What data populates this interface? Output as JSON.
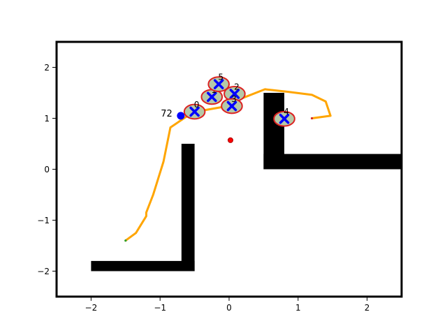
{
  "chart_data": {
    "type": "scatter",
    "title": "",
    "xlabel": "",
    "ylabel": "",
    "xlim": [
      -2.5,
      2.5
    ],
    "ylim": [
      -2.5,
      2.5
    ],
    "grid": false,
    "legend": "none",
    "x_ticks": [
      -2,
      -1,
      0,
      1,
      2
    ],
    "y_ticks": [
      -2,
      -1,
      0,
      1,
      2
    ],
    "x_tick_labels": [
      "−2",
      "−1",
      "0",
      "1",
      "2"
    ],
    "y_tick_labels": [
      "−2",
      "−1",
      "0",
      "1",
      "2"
    ],
    "obstacles": [
      {
        "x": [
          -2.0,
          -0.5
        ],
        "y": [
          -2.0,
          -1.8
        ]
      },
      {
        "x": [
          -0.69,
          -0.5
        ],
        "y": [
          -2.0,
          0.5
        ]
      },
      {
        "x": [
          0.5,
          0.8
        ],
        "y": [
          0.0,
          1.5
        ]
      },
      {
        "x": [
          0.5,
          2.5
        ],
        "y": [
          0.0,
          0.3
        ]
      }
    ],
    "path": {
      "color": "#ffa500",
      "points": [
        [
          -1.5,
          -1.4
        ],
        [
          -1.35,
          -1.25
        ],
        [
          -1.2,
          -0.92
        ],
        [
          -1.2,
          -0.85
        ],
        [
          -1.1,
          -0.5
        ],
        [
          -0.95,
          0.15
        ],
        [
          -0.85,
          0.82
        ],
        [
          -0.6,
          1.05
        ],
        [
          -0.4,
          1.15
        ],
        [
          -0.1,
          1.22
        ],
        [
          0.2,
          1.4
        ],
        [
          0.52,
          1.57
        ],
        [
          0.85,
          1.52
        ],
        [
          1.2,
          1.46
        ],
        [
          1.4,
          1.33
        ],
        [
          1.47,
          1.05
        ],
        [
          1.2,
          1.0
        ]
      ]
    },
    "start": {
      "x": -1.5,
      "y": -1.4,
      "color": "#2ca02c"
    },
    "goal": {
      "x": 1.2,
      "y": 1.0,
      "color": "#d62728"
    },
    "current_agent": {
      "x": -0.7,
      "y": 1.05,
      "label": "72",
      "color": "#0000ff"
    },
    "center_marker": {
      "x": 0.02,
      "y": 0.57,
      "color": "#ff0000"
    },
    "agents": [
      {
        "id": "0",
        "x": -0.5,
        "y": 1.13
      },
      {
        "id": "1",
        "x": -0.25,
        "y": 1.42
      },
      {
        "id": "2",
        "x": 0.08,
        "y": 1.48
      },
      {
        "id": "3",
        "x": 0.04,
        "y": 1.24
      },
      {
        "id": "4",
        "x": 0.8,
        "y": 0.99
      },
      {
        "id": "5",
        "x": -0.15,
        "y": 1.67
      }
    ],
    "agent_style": {
      "marker": "x",
      "marker_color": "#0000ff",
      "circle_fill": "#b5c9a8",
      "circle_edge": "#dd2222"
    }
  }
}
